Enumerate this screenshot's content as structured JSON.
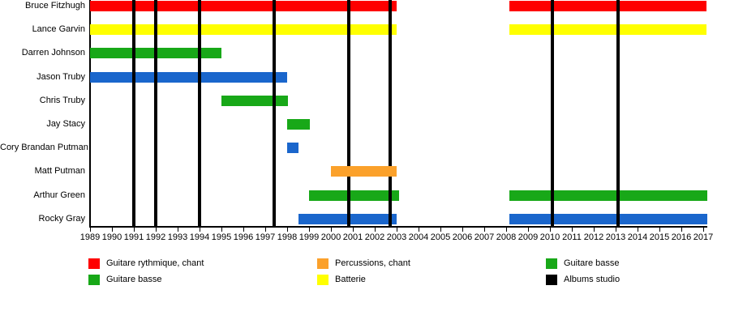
{
  "chart_data": {
    "type": "timeline",
    "x_axis": {
      "start": 1989,
      "end": 2017,
      "tick_step": 1,
      "tick_labels": [
        "1989",
        "1990",
        "1991",
        "1992",
        "1993",
        "1994",
        "1995",
        "1996",
        "1997",
        "1998",
        "1999",
        "2000",
        "2001",
        "2002",
        "2003",
        "2004",
        "2005",
        "2006",
        "2007",
        "2008",
        "2009",
        "2010",
        "2011",
        "2012",
        "2013",
        "2014",
        "2015",
        "2016",
        "2017"
      ]
    },
    "members": [
      {
        "name": "Bruce Fitzhugh",
        "color": "red",
        "periods": [
          {
            "from": 1989,
            "to": 2003
          },
          {
            "from": 2008.15,
            "to": 2017.15
          }
        ]
      },
      {
        "name": "Lance Garvin",
        "color": "yellow",
        "periods": [
          {
            "from": 1989,
            "to": 2003
          },
          {
            "from": 2008.15,
            "to": 2017.15
          }
        ]
      },
      {
        "name": "Darren Johnson",
        "color": "green",
        "periods": [
          {
            "from": 1989,
            "to": 1995
          }
        ]
      },
      {
        "name": "Jason Truby",
        "color": "blue",
        "periods": [
          {
            "from": 1989,
            "to": 1998
          }
        ]
      },
      {
        "name": "Chris Truby",
        "color": "green",
        "periods": [
          {
            "from": 1995,
            "to": 1998.05
          }
        ]
      },
      {
        "name": "Jay Stacy",
        "color": "green",
        "periods": [
          {
            "from": 1998,
            "to": 1999.05
          }
        ]
      },
      {
        "name": "Cory Brandan Putman",
        "color": "blue",
        "periods": [
          {
            "from": 1998,
            "to": 1998.5
          }
        ]
      },
      {
        "name": "Matt Putman",
        "color": "orange",
        "periods": [
          {
            "from": 2000,
            "to": 2003
          }
        ],
        "bar_over_lines": true
      },
      {
        "name": "Arthur Green",
        "color": "green",
        "periods": [
          {
            "from": 1999,
            "to": 2003.1
          },
          {
            "from": 2008.15,
            "to": 2017.2
          }
        ]
      },
      {
        "name": "Rocky Gray",
        "color": "blue",
        "periods": [
          {
            "from": 1998.5,
            "to": 2003
          },
          {
            "from": 2008.15,
            "to": 2017.2
          }
        ]
      }
    ],
    "album_lines": [
      1991,
      1992,
      1994,
      1997.4,
      2000.8,
      2002.7,
      2010.1,
      2013.1
    ],
    "colors": {
      "red": "#fe0000",
      "yellow": "#ffff00",
      "green": "#18a818",
      "blue": "#1a66cc",
      "orange": "#fba12b",
      "black": "#000000"
    },
    "legend_columns": [
      [
        {
          "color": "red",
          "label": "Guitare rythmique, chant"
        },
        {
          "color": "green",
          "label": "Guitare basse"
        }
      ],
      [
        {
          "color": "orange",
          "label": "Percussions, chant"
        },
        {
          "color": "yellow",
          "label": "Batterie"
        }
      ],
      [
        {
          "color": "green",
          "label": "Guitare basse"
        },
        {
          "color": "black",
          "label": "Albums studio"
        }
      ]
    ]
  }
}
